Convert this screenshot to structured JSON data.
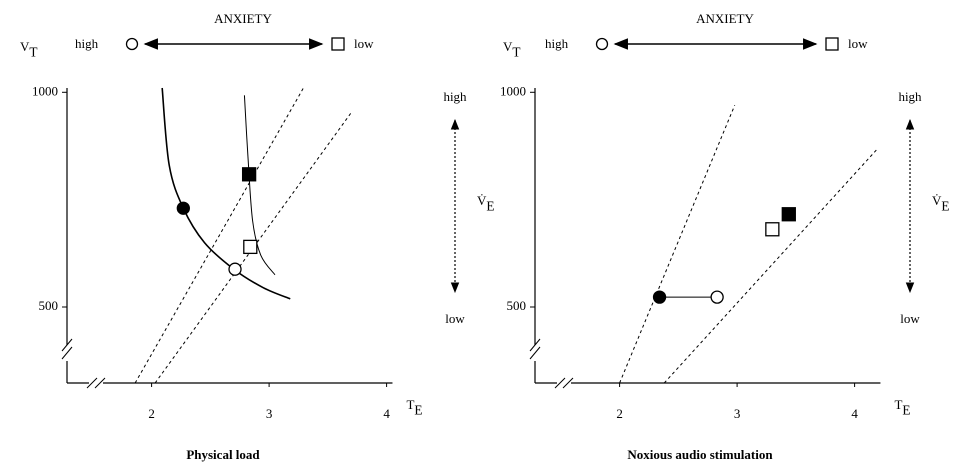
{
  "chart_data": [
    {
      "type": "scatter",
      "title": "Physical load",
      "xlabel": {
        "text": "T",
        "subscript": "E"
      },
      "ylabel": {
        "text": "V",
        "subscript": "T"
      },
      "xlim": [
        1.28,
        4.05
      ],
      "ylim": [
        323,
        1010
      ],
      "xticks": [
        2,
        3,
        4
      ],
      "yticks": [
        500,
        1000
      ],
      "annotations": {
        "top_title": "ANXIETY",
        "top_left": "high",
        "top_right": "low",
        "side_label": {
          "text": "V̇",
          "subscript": "E"
        },
        "side_top": "high",
        "side_bottom": "low"
      },
      "series": [
        {
          "style": "solid",
          "width": 1.6,
          "x": [
            2.09,
            2.15,
            2.27,
            2.45,
            2.7,
            2.95,
            3.18
          ],
          "values": [
            1010,
            830,
            730,
            650,
            588,
            545,
            519
          ]
        },
        {
          "style": "solid",
          "width": 1,
          "x": [
            2.79,
            2.82,
            2.86,
            2.93,
            3.05
          ],
          "values": [
            993,
            850,
            700,
            620,
            575
          ]
        },
        {
          "style": "dashed",
          "width": 1,
          "x": [
            1.86,
            3.29
          ],
          "values": [
            323,
            1009
          ]
        },
        {
          "style": "dashed",
          "width": 1,
          "x": [
            2.03,
            3.7
          ],
          "values": [
            323,
            953
          ]
        },
        {
          "marker": "circle",
          "color": "#000000",
          "x": [
            2.27
          ],
          "values": [
            730
          ]
        },
        {
          "marker": "circle",
          "color": "#ffffff",
          "x": [
            2.71
          ],
          "values": [
            588
          ]
        },
        {
          "marker": "square",
          "color": "#000000",
          "x": [
            2.83
          ],
          "values": [
            809
          ]
        },
        {
          "marker": "square",
          "color": "#ffffff",
          "x": [
            2.84
          ],
          "values": [
            640
          ]
        }
      ]
    },
    {
      "type": "scatter",
      "title": "Noxious audio stimulation",
      "xlabel": {
        "text": "T",
        "subscript": "E"
      },
      "ylabel": {
        "text": "V",
        "subscript": "T"
      },
      "xlim": [
        1.28,
        4.22
      ],
      "ylim": [
        323,
        1010
      ],
      "xticks": [
        2,
        3,
        4
      ],
      "yticks": [
        500,
        1000
      ],
      "annotations": {
        "top_title": "ANXIETY",
        "top_left": "high",
        "top_right": "low",
        "side_label": {
          "text": "V̇",
          "subscript": "E"
        },
        "side_top": "high",
        "side_bottom": "low"
      },
      "series": [
        {
          "style": "dashed",
          "width": 1,
          "x": [
            2.0,
            2.98
          ],
          "values": [
            323,
            970
          ]
        },
        {
          "style": "dashed",
          "width": 1,
          "x": [
            2.38,
            4.2
          ],
          "values": [
            323,
            870
          ]
        },
        {
          "style": "solid",
          "width": 1,
          "x": [
            2.34,
            2.83
          ],
          "values": [
            523,
            523
          ]
        },
        {
          "marker": "circle",
          "color": "#000000",
          "x": [
            2.34
          ],
          "values": [
            523
          ]
        },
        {
          "marker": "circle",
          "color": "#ffffff",
          "x": [
            2.83
          ],
          "values": [
            523
          ]
        },
        {
          "marker": "square",
          "color": "#ffffff",
          "x": [
            3.3
          ],
          "values": [
            681
          ]
        },
        {
          "marker": "square",
          "color": "#000000",
          "x": [
            3.44
          ],
          "values": [
            716
          ]
        }
      ]
    }
  ]
}
